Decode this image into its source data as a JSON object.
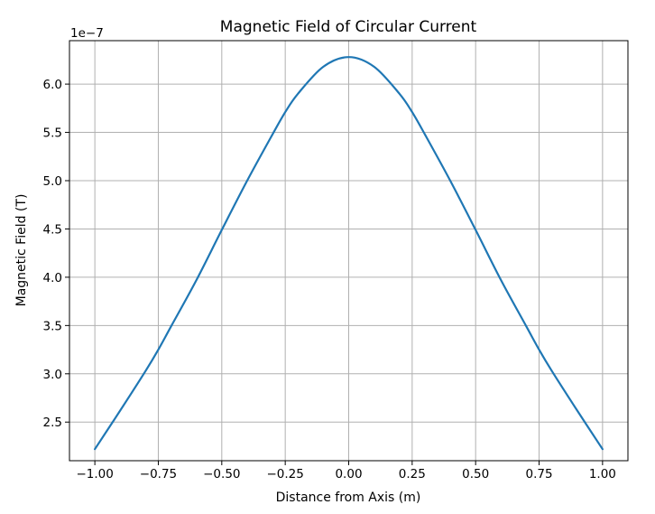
{
  "chart_data": {
    "type": "line",
    "title": "Magnetic Field of Circular Current",
    "xlabel": "Distance from Axis (m)",
    "ylabel": "Magnetic Field (T)",
    "y_offset_label": "1e−7",
    "y_scale": 1e-07,
    "xlim": [
      -1.1,
      1.1
    ],
    "ylim": [
      2.1,
      6.45
    ],
    "grid": true,
    "x_ticks": [
      {
        "value": -1.0,
        "label": "−1.00"
      },
      {
        "value": -0.75,
        "label": "−0.75"
      },
      {
        "value": -0.5,
        "label": "−0.50"
      },
      {
        "value": -0.25,
        "label": "−0.25"
      },
      {
        "value": 0.0,
        "label": "0.00"
      },
      {
        "value": 0.25,
        "label": "0.25"
      },
      {
        "value": 0.5,
        "label": "0.50"
      },
      {
        "value": 0.75,
        "label": "0.75"
      },
      {
        "value": 1.0,
        "label": "1.00"
      }
    ],
    "y_ticks": [
      {
        "value": 2.5,
        "label": "2.5"
      },
      {
        "value": 3.0,
        "label": "3.0"
      },
      {
        "value": 3.5,
        "label": "3.5"
      },
      {
        "value": 4.0,
        "label": "4.0"
      },
      {
        "value": 4.5,
        "label": "4.5"
      },
      {
        "value": 5.0,
        "label": "5.0"
      },
      {
        "value": 5.5,
        "label": "5.5"
      },
      {
        "value": 6.0,
        "label": "6.0"
      }
    ],
    "series": [
      {
        "color": "#1f77b4",
        "x": [
          -1.0,
          -0.9,
          -0.8,
          -0.75,
          -0.7,
          -0.6,
          -0.5,
          -0.4,
          -0.3,
          -0.25,
          -0.2,
          -0.1,
          0.0,
          0.1,
          0.2,
          0.25,
          0.3,
          0.4,
          0.5,
          0.6,
          0.7,
          0.75,
          0.8,
          0.9,
          1.0
        ],
        "y": [
          2.22,
          2.62,
          3.03,
          3.25,
          3.49,
          3.97,
          4.49,
          5.0,
          5.48,
          5.71,
          5.9,
          6.18,
          6.28,
          6.18,
          5.9,
          5.71,
          5.48,
          5.0,
          4.49,
          3.97,
          3.49,
          3.25,
          3.03,
          2.62,
          2.22
        ]
      }
    ]
  }
}
